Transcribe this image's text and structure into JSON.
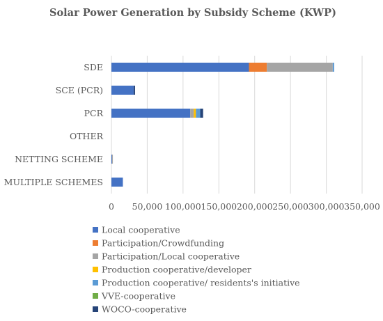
{
  "chart_data": {
    "type": "bar",
    "orientation": "horizontal",
    "stacked": true,
    "title": "Solar Power Generation by Subsidy Scheme (KWP)",
    "categories": [
      "SDE",
      "SCE (PCR)",
      "PCR",
      "OTHER",
      "NETTING SCHEME",
      "MULTIPLE SCHEMES"
    ],
    "xlim": [
      0,
      350000
    ],
    "xticks": [
      "0",
      "50,000",
      "100,000",
      "150,000",
      "200,000",
      "250,000",
      "300,000",
      "350,000"
    ],
    "grid": true,
    "legend_position": "bottom",
    "series": [
      {
        "name": "Local cooperative",
        "color": "#4472C4",
        "values": [
          192000,
          31000,
          110000,
          0,
          1000,
          16000
        ]
      },
      {
        "name": "Participation/Crowdfunding",
        "color": "#ED7D31",
        "values": [
          25000,
          0,
          0,
          0,
          0,
          0
        ]
      },
      {
        "name": "Participation/Local cooperative",
        "color": "#A5A5A5",
        "values": [
          92000,
          0,
          5000,
          0,
          1000,
          0
        ]
      },
      {
        "name": "Production cooperative/developer",
        "color": "#FFC000",
        "values": [
          0,
          0,
          3000,
          0,
          0,
          0
        ]
      },
      {
        "name": "Production cooperative/ residents's initiative",
        "color": "#5B9BD5",
        "values": [
          2000,
          0,
          6000,
          0,
          0,
          0
        ]
      },
      {
        "name": "VVE-cooperative",
        "color": "#70AD47",
        "values": [
          0,
          0,
          0,
          0,
          0,
          0
        ]
      },
      {
        "name": "WOCO-cooperative",
        "color": "#264478",
        "values": [
          0,
          2000,
          4000,
          0,
          0,
          0
        ]
      }
    ]
  }
}
